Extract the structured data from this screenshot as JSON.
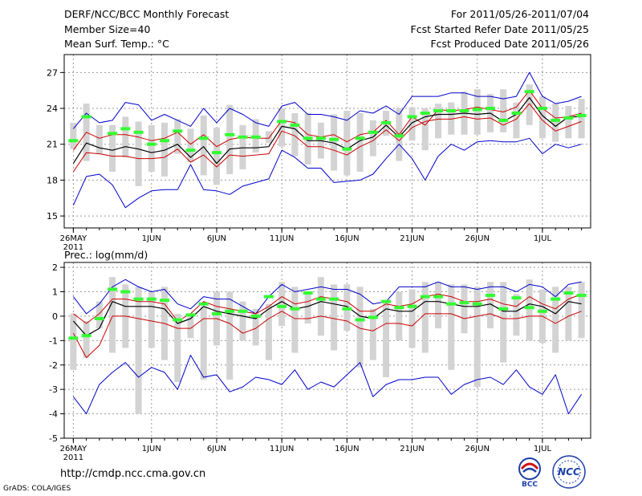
{
  "header": {
    "title": "DERF/NCC/BCC Monthly Forecast",
    "member_size": "Member Size=40",
    "variable": "Mean Surf. Temp.: °C",
    "period": "For 2011/05/26-2011/07/04",
    "started": "Fcst Started Refer Date 2011/05/25",
    "produced": "Fcst Produced Date 2011/05/26"
  },
  "footer": {
    "url": "http://cmdp.ncc.cma.gov.cn",
    "credit": "GrADS: COLA/IGES",
    "logo_bcc": "BCC",
    "logo_ncc": "NCC"
  },
  "x_axis": {
    "ticks": [
      {
        "day": 0,
        "label": "26MAY"
      },
      {
        "day": 6,
        "label": "1JUN"
      },
      {
        "day": 11,
        "label": "6JUN"
      },
      {
        "day": 16,
        "label": "11JUN"
      },
      {
        "day": 21,
        "label": "16JUN"
      },
      {
        "day": 26,
        "label": "21JUN"
      },
      {
        "day": 31,
        "label": "26JUN"
      },
      {
        "day": 36,
        "label": "1JUL"
      }
    ],
    "year": "2011",
    "range": [
      -0.7,
      39.7
    ]
  },
  "colors": {
    "mean": "#000000",
    "spread": "#cc0000",
    "extreme": "#0000cc",
    "bar": "#d3d3d3",
    "obs": "#33ff33"
  },
  "chart_data": [
    {
      "type": "line",
      "title": "Mean Surf. Temp.: °C",
      "ylim": [
        14.0,
        28.5
      ],
      "yticks": [
        15,
        18,
        21,
        24,
        27
      ],
      "ytick_labels": [
        "15",
        "18",
        "21",
        "24",
        "27"
      ],
      "grid": true,
      "series": [
        {
          "name": "max",
          "values": [
            22.3,
            23.6,
            22.8,
            23.0,
            24.5,
            24.3,
            23.0,
            23.5,
            23.0,
            22.5,
            24.0,
            22.8,
            24.0,
            23.5,
            22.8,
            22.5,
            24.2,
            24.5,
            23.5,
            23.5,
            23.3,
            23.0,
            23.8,
            23.6,
            24.2,
            23.5,
            25.0,
            25.0,
            25.0,
            25.3,
            25.3,
            25.0,
            25.0,
            24.8,
            25.0,
            27.0,
            25.0,
            24.4,
            24.6,
            25.0
          ]
        },
        {
          "name": "upper",
          "values": [
            20.5,
            22.0,
            21.5,
            21.8,
            21.8,
            21.6,
            21.3,
            21.5,
            22.0,
            21.0,
            21.8,
            20.8,
            21.4,
            21.6,
            21.5,
            21.5,
            23.0,
            22.8,
            21.8,
            21.6,
            21.8,
            21.2,
            21.8,
            22.0,
            23.0,
            21.8,
            23.3,
            22.6,
            23.9,
            23.8,
            23.9,
            24.1,
            23.9,
            23.7,
            24.1,
            25.5,
            24.0,
            23.2,
            23.3,
            23.6
          ]
        },
        {
          "name": "mean",
          "values": [
            19.4,
            21.1,
            20.7,
            20.5,
            20.8,
            20.6,
            20.3,
            20.5,
            21.0,
            19.9,
            20.8,
            19.4,
            20.6,
            20.7,
            20.7,
            20.8,
            22.5,
            22.3,
            21.3,
            21.3,
            21.1,
            20.6,
            21.3,
            21.6,
            22.6,
            21.6,
            22.8,
            23.3,
            23.5,
            23.5,
            23.6,
            23.5,
            23.6,
            22.9,
            23.5,
            24.9,
            23.4,
            22.5,
            23.3,
            23.3
          ]
        },
        {
          "name": "lower",
          "values": [
            18.7,
            20.3,
            20.2,
            20.0,
            20.0,
            19.8,
            19.8,
            19.9,
            20.6,
            19.5,
            20.1,
            19.1,
            20.1,
            20.0,
            20.1,
            20.2,
            22.1,
            21.7,
            20.8,
            20.8,
            20.5,
            20.1,
            20.8,
            21.3,
            22.2,
            21.3,
            22.4,
            22.9,
            23.1,
            23.1,
            23.3,
            23.1,
            23.2,
            22.6,
            23.1,
            24.4,
            23.0,
            22.1,
            22.5,
            22.9
          ]
        },
        {
          "name": "min",
          "values": [
            15.9,
            18.3,
            18.5,
            17.6,
            15.7,
            16.5,
            17.1,
            17.2,
            17.2,
            19.3,
            17.2,
            17.1,
            16.8,
            17.5,
            17.8,
            18.1,
            20.5,
            19.9,
            19.0,
            19.0,
            17.8,
            17.9,
            18.0,
            18.5,
            19.8,
            21.0,
            19.8,
            18.0,
            20.0,
            21.0,
            20.5,
            21.2,
            21.3,
            21.2,
            21.2,
            21.5,
            20.2,
            21.0,
            20.7,
            21.0
          ]
        },
        {
          "name": "bar_top",
          "values": [
            22.8,
            24.4,
            22.6,
            22.6,
            23.3,
            22.9,
            22.6,
            22.8,
            23.1,
            22.3,
            23.4,
            22.4,
            24.3,
            22.6,
            23.1,
            22.1,
            24.0,
            23.6,
            23.6,
            22.8,
            23.5,
            23.8,
            23.6,
            23.0,
            23.8,
            24.0,
            24.1,
            24.0,
            24.4,
            24.5,
            25.4,
            25.6,
            25.2,
            25.6,
            24.5,
            26.0,
            25.0,
            24.4,
            24.2,
            24.8
          ]
        },
        {
          "name": "bar_bottom",
          "values": [
            20.6,
            19.6,
            20.2,
            18.7,
            19.9,
            17.5,
            18.7,
            18.3,
            20.2,
            19.5,
            18.4,
            17.6,
            18.5,
            18.9,
            20.3,
            21.1,
            20.8,
            20.0,
            19.3,
            19.8,
            18.8,
            18.4,
            18.7,
            20.0,
            21.7,
            19.6,
            21.3,
            20.5,
            21.5,
            21.8,
            21.8,
            21.8,
            22.0,
            22.0,
            21.5,
            22.6,
            21.5,
            21.2,
            21.5,
            21.5
          ]
        },
        {
          "name": "obs",
          "values": [
            21.3,
            23.3,
            null,
            21.9,
            22.3,
            22.0,
            21.0,
            21.3,
            22.1,
            20.5,
            21.5,
            20.3,
            21.8,
            21.6,
            21.6,
            null,
            22.9,
            22.6,
            21.5,
            21.5,
            21.4,
            20.6,
            21.5,
            22.0,
            22.8,
            21.7,
            23.3,
            23.6,
            23.8,
            23.8,
            23.8,
            23.9,
            24.0,
            23.0,
            23.6,
            25.4,
            24.0,
            23.0,
            23.2,
            23.4
          ]
        }
      ]
    },
    {
      "type": "line",
      "title": "Prec.: log(mm/d)",
      "ylim": [
        -5,
        2.2
      ],
      "yticks": [
        -5,
        -4,
        -3,
        -2,
        -1,
        0,
        1,
        2
      ],
      "ytick_labels": [
        "-5",
        "-4",
        "-3",
        "-2",
        "-1",
        "0",
        "1",
        "2"
      ],
      "grid": true,
      "series": [
        {
          "name": "max",
          "values": [
            0.8,
            0.1,
            0.5,
            1.2,
            1.5,
            1.2,
            1.0,
            1.1,
            0.5,
            0.3,
            0.8,
            0.7,
            0.7,
            0.4,
            0.1,
            0.8,
            1.3,
            1.0,
            1.1,
            1.2,
            1.1,
            1.1,
            0.9,
            0.5,
            0.6,
            1.2,
            1.2,
            1.2,
            1.4,
            1.2,
            1.2,
            1.1,
            1.2,
            1.2,
            1.0,
            1.3,
            1.2,
            0.8,
            1.3,
            1.4
          ]
        },
        {
          "name": "upper",
          "values": [
            0.1,
            -0.3,
            0.1,
            0.7,
            0.7,
            0.6,
            0.6,
            0.5,
            -0.2,
            0.1,
            0.6,
            0.4,
            0.3,
            0.2,
            0.1,
            0.4,
            0.8,
            0.5,
            0.6,
            0.8,
            0.7,
            0.6,
            0.2,
            0.2,
            0.5,
            0.4,
            0.5,
            0.8,
            0.9,
            0.8,
            0.6,
            0.6,
            0.7,
            0.5,
            0.4,
            0.8,
            0.5,
            0.3,
            0.7,
            0.9
          ]
        },
        {
          "name": "mean",
          "values": [
            -0.2,
            -0.8,
            -0.5,
            0.6,
            0.4,
            0.4,
            0.4,
            0.3,
            -0.3,
            -0.1,
            0.4,
            0.2,
            0.1,
            0.0,
            -0.1,
            0.3,
            0.6,
            0.3,
            0.4,
            0.6,
            0.5,
            0.4,
            0.0,
            -0.1,
            0.3,
            0.2,
            0.2,
            0.6,
            0.6,
            0.5,
            0.4,
            0.4,
            0.5,
            0.2,
            0.2,
            0.5,
            0.4,
            0.1,
            0.6,
            0.5
          ]
        },
        {
          "name": "lower",
          "values": [
            -0.7,
            -1.7,
            -1.2,
            0.0,
            0.0,
            -0.1,
            -0.2,
            -0.3,
            -0.5,
            -0.5,
            -0.1,
            -0.1,
            -0.3,
            -0.7,
            -0.5,
            -0.1,
            0.2,
            -0.1,
            -0.1,
            0.0,
            -0.1,
            -0.2,
            -0.5,
            -0.6,
            -0.3,
            -0.3,
            -0.4,
            0.1,
            0.1,
            0.1,
            -0.1,
            0.0,
            0.1,
            -0.1,
            -0.1,
            0.0,
            0.0,
            -0.3,
            0.0,
            0.2
          ]
        },
        {
          "name": "min",
          "values": [
            -3.3,
            -4.0,
            -2.8,
            -2.3,
            -1.9,
            -2.5,
            -2.1,
            -2.3,
            -3.0,
            -1.6,
            -2.5,
            -2.4,
            -3.1,
            -2.9,
            -2.5,
            -2.6,
            -2.8,
            -2.2,
            -3.0,
            -2.7,
            -2.9,
            -2.4,
            -1.9,
            -3.3,
            -2.8,
            -2.6,
            -2.6,
            -2.5,
            -2.5,
            -3.2,
            -2.8,
            -2.6,
            -2.5,
            -2.8,
            -2.2,
            -2.9,
            -3.2,
            -2.4,
            -4.0,
            -3.2
          ]
        },
        {
          "name": "bar_top",
          "values": [
            0.1,
            -0.2,
            0.6,
            1.6,
            1.3,
            1.2,
            1.0,
            1.2,
            0.1,
            0.1,
            0.4,
            1.0,
            1.0,
            0.6,
            0.3,
            0.5,
            1.4,
            1.2,
            1.0,
            1.6,
            1.3,
            1.3,
            1.2,
            0.3,
            0.6,
            1.0,
            1.1,
            1.4,
            1.4,
            1.3,
            1.3,
            1.2,
            1.4,
            1.4,
            0.9,
            1.5,
            1.1,
            1.2,
            1.2,
            1.4
          ]
        },
        {
          "name": "bar_bottom",
          "values": [
            -2.2,
            -1.7,
            -0.5,
            -1.5,
            -1.3,
            -4.0,
            -1.3,
            -1.8,
            -2.7,
            -0.9,
            -2.6,
            -1.2,
            -2.6,
            -1.0,
            -1.2,
            -1.8,
            -0.4,
            -1.5,
            -0.3,
            -0.8,
            -1.4,
            -0.6,
            -2.1,
            -1.8,
            -2.5,
            -1.0,
            -1.3,
            -1.5,
            -0.5,
            -2.2,
            -0.7,
            -2.9,
            -0.5,
            -1.9,
            -0.8,
            -1.0,
            -1.1,
            -1.5,
            -1.0,
            -0.9
          ]
        },
        {
          "name": "obs",
          "values": [
            -0.9,
            -0.8,
            -0.1,
            1.1,
            1.0,
            0.7,
            0.7,
            0.65,
            -0.15,
            0.05,
            0.5,
            0.1,
            0.2,
            0.2,
            0.0,
            0.8,
            0.4,
            0.3,
            0.95,
            0.7,
            0.7,
            0.3,
            -0.15,
            -0.05,
            0.6,
            0.35,
            0.4,
            0.8,
            0.8,
            0.5,
            0.55,
            0.5,
            0.85,
            0.3,
            0.75,
            0.35,
            0.2,
            0.7,
            0.95,
            0.85
          ]
        }
      ]
    }
  ]
}
